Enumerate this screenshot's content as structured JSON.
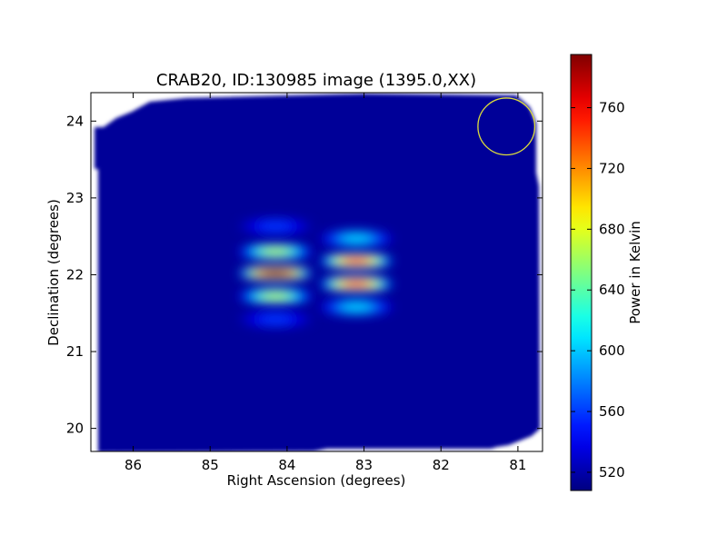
{
  "chart_data": {
    "type": "heatmap",
    "title": "CRAB20, ID:130985 image (1395.0,XX)",
    "xlabel": "Right Ascension (degrees)",
    "ylabel": "Declination (degrees)",
    "xlim": [
      86.55,
      80.68
    ],
    "ylim": [
      19.7,
      24.37
    ],
    "x_ticks": [
      86,
      85,
      84,
      83,
      82,
      81
    ],
    "y_ticks": [
      20,
      21,
      22,
      23,
      24
    ],
    "colorbar": {
      "label": "Power in Kelvin",
      "range": [
        508,
        795
      ],
      "ticks": [
        520,
        560,
        600,
        640,
        680,
        720,
        760
      ],
      "colormap": "jet"
    },
    "background_value": 515,
    "sources": [
      {
        "ra": 84.15,
        "dec": 22.3,
        "peak": 665
      },
      {
        "ra": 84.15,
        "dec": 22.02,
        "peak": 790
      },
      {
        "ra": 84.15,
        "dec": 21.72,
        "peak": 665
      },
      {
        "ra": 84.15,
        "dec": 22.63,
        "peak": 560
      },
      {
        "ra": 84.15,
        "dec": 21.42,
        "peak": 560
      },
      {
        "ra": 83.1,
        "dec": 22.18,
        "peak": 745
      },
      {
        "ra": 83.1,
        "dec": 21.88,
        "peak": 745
      },
      {
        "ra": 83.1,
        "dec": 22.47,
        "peak": 605
      },
      {
        "ra": 83.1,
        "dec": 21.58,
        "peak": 605
      }
    ],
    "beam_circle": {
      "ra": 81.15,
      "dec": 23.93,
      "radius_deg": 0.37,
      "color": "#dcdc3c"
    }
  }
}
